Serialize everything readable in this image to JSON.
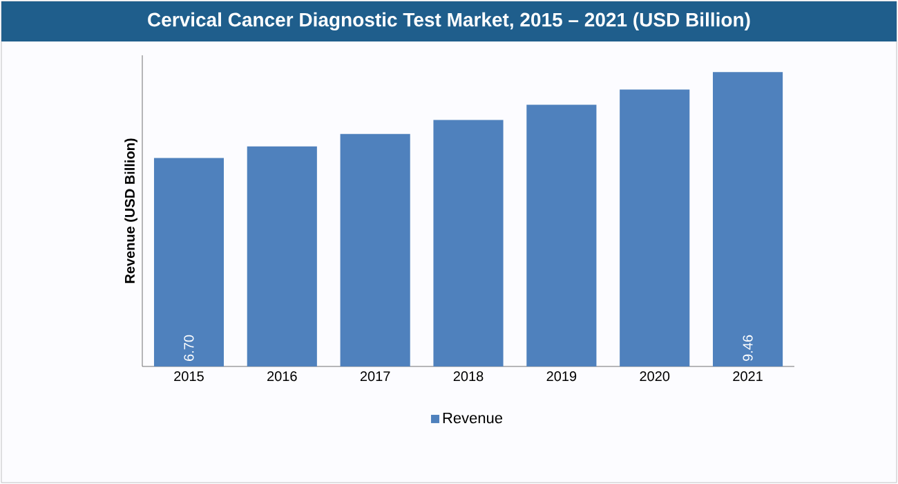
{
  "chart_data": {
    "type": "bar",
    "title": "Cervical Cancer Diagnostic Test Market, 2015 – 2021 (USD Billion)",
    "ylabel": "Revenue (USD Billion)",
    "categories": [
      "2015",
      "2016",
      "2017",
      "2018",
      "2019",
      "2020",
      "2021"
    ],
    "series": [
      {
        "name": "Revenue",
        "color": "#4f81bd",
        "values": [
          6.7,
          7.07,
          7.47,
          7.92,
          8.41,
          8.9,
          9.46
        ],
        "value_labels": [
          "6.70",
          null,
          null,
          null,
          null,
          null,
          "9.46"
        ]
      }
    ],
    "ylim": [
      0,
      10
    ],
    "legend": "bottom"
  }
}
